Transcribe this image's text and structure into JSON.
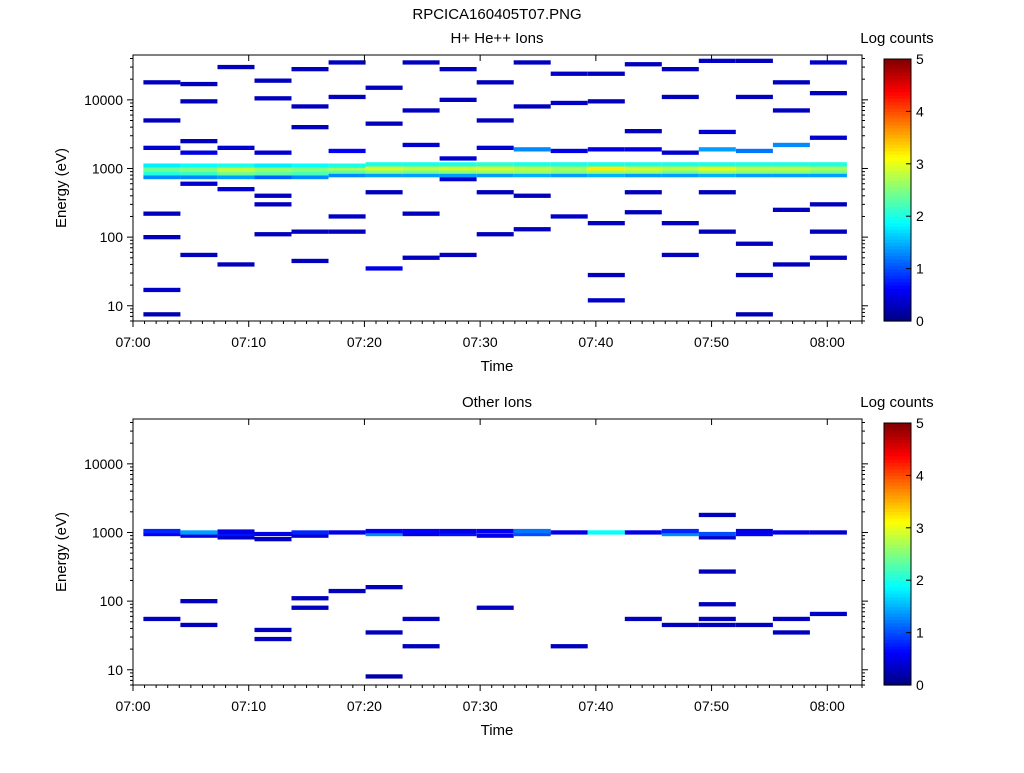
{
  "figure": {
    "title": "RPCICA160405T07.PNG"
  },
  "colorbar": {
    "label": "Log counts",
    "ticks": [
      "0",
      "1",
      "2",
      "3",
      "4",
      "5"
    ],
    "range": [
      0,
      5
    ],
    "colormap": "jet"
  },
  "chart_data": [
    {
      "type": "heatmap",
      "title": "H+ He++ Ions",
      "xlabel": "Time",
      "ylabel": "Energy (eV)",
      "xlim": [
        "07:00",
        "08:03"
      ],
      "ylim": [
        6,
        45000
      ],
      "yscale": "log",
      "x_ticks": [
        "07:00",
        "07:10",
        "07:20",
        "07:30",
        "07:40",
        "07:50",
        "08:00"
      ],
      "y_ticks": [
        "10",
        "100",
        "1000",
        "10000"
      ],
      "time_bins_min": [
        2.5,
        5.7,
        8.9,
        12.1,
        15.3,
        18.5,
        21.7,
        24.9,
        28.1,
        31.3,
        34.5,
        37.7,
        40.9,
        44.1,
        47.3,
        50.5,
        53.7,
        56.9,
        60.1
      ],
      "cells": [
        [
          0,
          7.5,
          0.25
        ],
        [
          0,
          17,
          0.35
        ],
        [
          0,
          100,
          0.3
        ],
        [
          0,
          220,
          0.3
        ],
        [
          0,
          750,
          1.3
        ],
        [
          0,
          850,
          2.0
        ],
        [
          0,
          950,
          2.4
        ],
        [
          0,
          1100,
          1.8
        ],
        [
          0,
          2000,
          0.4
        ],
        [
          0,
          5000,
          0.3
        ],
        [
          0,
          18000,
          0.3
        ],
        [
          1,
          55,
          0.3
        ],
        [
          1,
          600,
          0.4
        ],
        [
          1,
          750,
          1.3
        ],
        [
          1,
          850,
          2.1
        ],
        [
          1,
          950,
          2.5
        ],
        [
          1,
          1100,
          1.9
        ],
        [
          1,
          1700,
          0.5
        ],
        [
          1,
          2500,
          0.3
        ],
        [
          1,
          9500,
          0.3
        ],
        [
          1,
          17000,
          0.3
        ],
        [
          2,
          40,
          0.3
        ],
        [
          2,
          500,
          0.4
        ],
        [
          2,
          750,
          1.4
        ],
        [
          2,
          850,
          2.4
        ],
        [
          2,
          950,
          2.8
        ],
        [
          2,
          1100,
          2.0
        ],
        [
          2,
          2000,
          0.4
        ],
        [
          2,
          30000,
          0.3
        ],
        [
          3,
          110,
          0.3
        ],
        [
          3,
          300,
          0.3
        ],
        [
          3,
          400,
          0.3
        ],
        [
          3,
          750,
          1.1
        ],
        [
          3,
          850,
          2.3
        ],
        [
          3,
          950,
          2.6
        ],
        [
          3,
          1100,
          1.8
        ],
        [
          3,
          1700,
          0.4
        ],
        [
          3,
          10500,
          0.3
        ],
        [
          3,
          19000,
          0.3
        ],
        [
          4,
          45,
          0.3
        ],
        [
          4,
          120,
          0.3
        ],
        [
          4,
          750,
          1.3
        ],
        [
          4,
          850,
          2.2
        ],
        [
          4,
          950,
          2.5
        ],
        [
          4,
          1100,
          1.9
        ],
        [
          4,
          4000,
          0.3
        ],
        [
          4,
          8000,
          0.3
        ],
        [
          4,
          28000,
          0.3
        ],
        [
          5,
          120,
          0.3
        ],
        [
          5,
          200,
          0.35
        ],
        [
          5,
          800,
          1.3
        ],
        [
          5,
          900,
          2.3
        ],
        [
          5,
          1000,
          2.7
        ],
        [
          5,
          1100,
          2.0
        ],
        [
          5,
          1800,
          0.6
        ],
        [
          5,
          11000,
          0.3
        ],
        [
          5,
          35000,
          0.3
        ],
        [
          6,
          35,
          0.5
        ],
        [
          6,
          450,
          0.3
        ],
        [
          6,
          800,
          1.4
        ],
        [
          6,
          900,
          2.5
        ],
        [
          6,
          1000,
          2.9
        ],
        [
          6,
          1150,
          2.0
        ],
        [
          6,
          4500,
          0.3
        ],
        [
          6,
          15000,
          0.3
        ],
        [
          7,
          50,
          0.3
        ],
        [
          7,
          220,
          0.3
        ],
        [
          7,
          800,
          1.4
        ],
        [
          7,
          900,
          2.4
        ],
        [
          7,
          1000,
          2.8
        ],
        [
          7,
          1150,
          2.0
        ],
        [
          7,
          2200,
          0.4
        ],
        [
          7,
          7000,
          0.3
        ],
        [
          7,
          35000,
          0.3
        ],
        [
          8,
          55,
          0.3
        ],
        [
          8,
          700,
          0.4
        ],
        [
          8,
          800,
          1.4
        ],
        [
          8,
          900,
          2.5
        ],
        [
          8,
          1000,
          2.9
        ],
        [
          8,
          1150,
          2.0
        ],
        [
          8,
          1400,
          0.4
        ],
        [
          8,
          10000,
          0.3
        ],
        [
          8,
          28000,
          0.3
        ],
        [
          9,
          110,
          0.3
        ],
        [
          9,
          450,
          0.3
        ],
        [
          9,
          800,
          1.4
        ],
        [
          9,
          900,
          2.6
        ],
        [
          9,
          1000,
          2.9
        ],
        [
          9,
          1150,
          2.1
        ],
        [
          9,
          2000,
          0.4
        ],
        [
          9,
          5000,
          0.3
        ],
        [
          9,
          18000,
          0.3
        ],
        [
          10,
          130,
          0.3
        ],
        [
          10,
          400,
          0.3
        ],
        [
          10,
          800,
          1.5
        ],
        [
          10,
          900,
          2.6
        ],
        [
          10,
          1000,
          2.8
        ],
        [
          10,
          1150,
          2.0
        ],
        [
          10,
          1900,
          1.3
        ],
        [
          10,
          8000,
          0.3
        ],
        [
          10,
          35000,
          0.3
        ],
        [
          11,
          200,
          0.35
        ],
        [
          11,
          800,
          1.4
        ],
        [
          11,
          900,
          2.5
        ],
        [
          11,
          1000,
          2.7
        ],
        [
          11,
          1150,
          2.0
        ],
        [
          11,
          1800,
          0.5
        ],
        [
          11,
          9000,
          0.35
        ],
        [
          11,
          24000,
          0.35
        ],
        [
          12,
          12,
          0.35
        ],
        [
          12,
          28,
          0.3
        ],
        [
          12,
          160,
          0.3
        ],
        [
          12,
          800,
          1.5
        ],
        [
          12,
          900,
          2.6
        ],
        [
          12,
          1000,
          3.2
        ],
        [
          12,
          1150,
          2.0
        ],
        [
          12,
          1900,
          0.5
        ],
        [
          12,
          9500,
          0.3
        ],
        [
          12,
          24000,
          0.3
        ],
        [
          13,
          230,
          0.3
        ],
        [
          13,
          450,
          0.3
        ],
        [
          13,
          800,
          1.4
        ],
        [
          13,
          900,
          2.6
        ],
        [
          13,
          1000,
          2.9
        ],
        [
          13,
          1150,
          2.0
        ],
        [
          13,
          1900,
          0.5
        ],
        [
          13,
          3500,
          0.3
        ],
        [
          13,
          33000,
          0.3
        ],
        [
          14,
          55,
          0.3
        ],
        [
          14,
          160,
          0.3
        ],
        [
          14,
          800,
          1.4
        ],
        [
          14,
          900,
          2.4
        ],
        [
          14,
          1000,
          2.8
        ],
        [
          14,
          1150,
          2.0
        ],
        [
          14,
          1700,
          0.4
        ],
        [
          14,
          11000,
          0.3
        ],
        [
          14,
          28000,
          0.3
        ],
        [
          15,
          120,
          0.3
        ],
        [
          15,
          450,
          0.3
        ],
        [
          15,
          800,
          1.5
        ],
        [
          15,
          900,
          2.6
        ],
        [
          15,
          1000,
          3.0
        ],
        [
          15,
          1150,
          2.0
        ],
        [
          15,
          1900,
          1.4
        ],
        [
          15,
          3400,
          0.4
        ],
        [
          15,
          37000,
          0.35
        ],
        [
          16,
          7.5,
          0.25
        ],
        [
          16,
          28,
          0.35
        ],
        [
          16,
          80,
          0.3
        ],
        [
          16,
          800,
          1.4
        ],
        [
          16,
          900,
          2.5
        ],
        [
          16,
          1000,
          2.8
        ],
        [
          16,
          1150,
          2.0
        ],
        [
          16,
          1800,
          1.2
        ],
        [
          16,
          11000,
          0.3
        ],
        [
          16,
          37000,
          0.3
        ],
        [
          17,
          40,
          0.3
        ],
        [
          17,
          250,
          0.3
        ],
        [
          17,
          800,
          1.4
        ],
        [
          17,
          900,
          2.5
        ],
        [
          17,
          1000,
          2.8
        ],
        [
          17,
          1150,
          2.0
        ],
        [
          17,
          2200,
          1.3
        ],
        [
          17,
          7000,
          0.3
        ],
        [
          17,
          18000,
          0.3
        ],
        [
          18,
          50,
          0.3
        ],
        [
          18,
          120,
          0.3
        ],
        [
          18,
          300,
          0.3
        ],
        [
          18,
          800,
          1.4
        ],
        [
          18,
          900,
          2.4
        ],
        [
          18,
          1000,
          2.7
        ],
        [
          18,
          1150,
          2.0
        ],
        [
          18,
          2800,
          0.4
        ],
        [
          18,
          12500,
          0.3
        ],
        [
          18,
          35000,
          0.35
        ]
      ]
    },
    {
      "type": "heatmap",
      "title": "Other Ions",
      "xlabel": "Time",
      "ylabel": "Energy (eV)",
      "xlim": [
        "07:00",
        "08:03"
      ],
      "ylim": [
        6,
        45000
      ],
      "yscale": "log",
      "x_ticks": [
        "07:00",
        "07:10",
        "07:20",
        "07:30",
        "07:40",
        "07:50",
        "08:00"
      ],
      "y_ticks": [
        "10",
        "100",
        "1000",
        "10000"
      ],
      "time_bins_min": [
        2.5,
        5.7,
        8.9,
        12.1,
        15.3,
        18.5,
        21.7,
        24.9,
        28.1,
        31.3,
        34.5,
        37.7,
        40.9,
        44.1,
        47.3,
        50.5,
        53.7,
        56.9,
        60.1
      ],
      "cells": [
        [
          0,
          55,
          0.3
        ],
        [
          0,
          950,
          0.6
        ],
        [
          0,
          1050,
          0.8
        ],
        [
          1,
          45,
          0.3
        ],
        [
          1,
          100,
          0.3
        ],
        [
          1,
          900,
          0.5
        ],
        [
          1,
          1000,
          1.4
        ],
        [
          2,
          850,
          0.35
        ],
        [
          2,
          950,
          0.7
        ],
        [
          2,
          1030,
          0.5
        ],
        [
          3,
          28,
          0.3
        ],
        [
          3,
          38,
          0.3
        ],
        [
          3,
          800,
          0.3
        ],
        [
          3,
          950,
          0.5
        ],
        [
          4,
          80,
          0.3
        ],
        [
          4,
          110,
          0.3
        ],
        [
          4,
          900,
          0.4
        ],
        [
          4,
          1000,
          0.8
        ],
        [
          5,
          140,
          0.3
        ],
        [
          5,
          1000,
          0.5
        ],
        [
          6,
          8,
          0.2
        ],
        [
          6,
          35,
          0.3
        ],
        [
          6,
          160,
          0.3
        ],
        [
          6,
          950,
          1.3
        ],
        [
          6,
          1050,
          0.6
        ],
        [
          7,
          22,
          0.3
        ],
        [
          7,
          55,
          0.3
        ],
        [
          7,
          950,
          0.5
        ],
        [
          7,
          1050,
          0.6
        ],
        [
          8,
          950,
          0.7
        ],
        [
          8,
          1050,
          0.5
        ],
        [
          9,
          80,
          0.3
        ],
        [
          9,
          900,
          0.5
        ],
        [
          9,
          1050,
          0.6
        ],
        [
          10,
          950,
          1.0
        ],
        [
          10,
          1050,
          1.2
        ],
        [
          11,
          22,
          0.3
        ],
        [
          11,
          1000,
          0.5
        ],
        [
          12,
          1000,
          1.9
        ],
        [
          13,
          55,
          0.3
        ],
        [
          13,
          1000,
          0.5
        ],
        [
          14,
          45,
          0.3
        ],
        [
          14,
          950,
          1.3
        ],
        [
          14,
          1050,
          0.8
        ],
        [
          15,
          45,
          0.3
        ],
        [
          15,
          55,
          0.3
        ],
        [
          15,
          90,
          0.3
        ],
        [
          15,
          270,
          0.3
        ],
        [
          15,
          850,
          0.35
        ],
        [
          15,
          950,
          1.0
        ],
        [
          15,
          1800,
          0.3
        ],
        [
          16,
          45,
          0.3
        ],
        [
          16,
          950,
          0.6
        ],
        [
          16,
          1050,
          0.5
        ],
        [
          17,
          35,
          0.3
        ],
        [
          17,
          55,
          0.3
        ],
        [
          17,
          1000,
          0.5
        ],
        [
          18,
          65,
          0.35
        ],
        [
          18,
          1000,
          0.4
        ]
      ]
    }
  ]
}
